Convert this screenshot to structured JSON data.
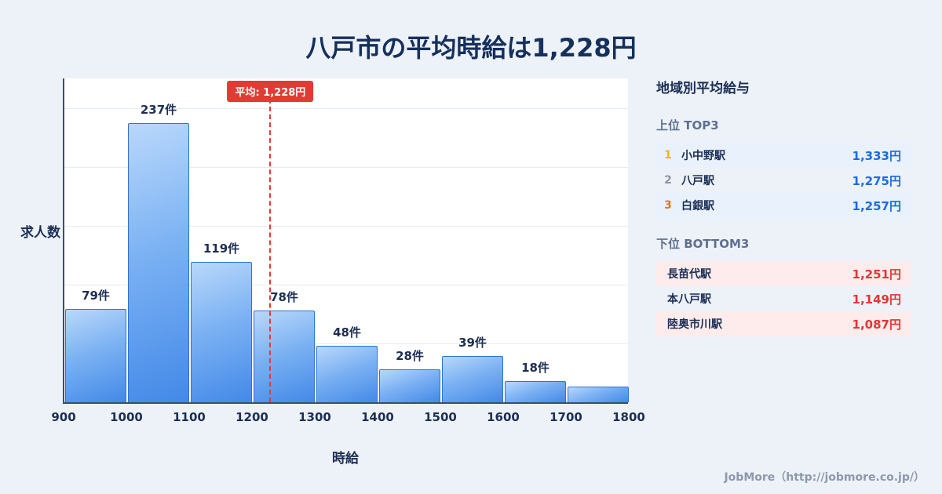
{
  "title": "八戸市の平均時給は1,228円",
  "chart_data": {
    "type": "bar",
    "title": "八戸市の平均時給は1,228円",
    "xlabel": "時給",
    "ylabel": "求人数",
    "x_ticks": [
      "900",
      "1000",
      "1100",
      "1200",
      "1300",
      "1400",
      "1500",
      "1600",
      "1700",
      "1800"
    ],
    "xlim": [
      900,
      1800
    ],
    "ylim": [
      0,
      277
    ],
    "grid": true,
    "bins": [
      {
        "range": [
          900,
          1000
        ],
        "count": 79,
        "label": "79件"
      },
      {
        "range": [
          1000,
          1100
        ],
        "count": 237,
        "label": "237件"
      },
      {
        "range": [
          1100,
          1200
        ],
        "count": 119,
        "label": "119件"
      },
      {
        "range": [
          1200,
          1300
        ],
        "count": 78,
        "label": "78件"
      },
      {
        "range": [
          1300,
          1400
        ],
        "count": 48,
        "label": "48件"
      },
      {
        "range": [
          1400,
          1500
        ],
        "count": 28,
        "label": "28件"
      },
      {
        "range": [
          1500,
          1600
        ],
        "count": 39,
        "label": "39件"
      },
      {
        "range": [
          1600,
          1700
        ],
        "count": 18,
        "label": "18件"
      },
      {
        "range": [
          1700,
          1800
        ],
        "count": 13,
        "label": ""
      }
    ],
    "average": 1228,
    "average_label": "平均: 1,228円"
  },
  "sidebar": {
    "heading": "地域別平均給与",
    "top": {
      "heading": "上位 TOP3",
      "rows": [
        {
          "rank": "1",
          "station": "小中野駅",
          "value": "1,333円"
        },
        {
          "rank": "2",
          "station": "八戸駅",
          "value": "1,275円"
        },
        {
          "rank": "3",
          "station": "白銀駅",
          "value": "1,257円"
        }
      ]
    },
    "bottom": {
      "heading": "下位 BOTTOM3",
      "rows": [
        {
          "station": "長苗代駅",
          "value": "1,251円"
        },
        {
          "station": "本八戸駅",
          "value": "1,149円"
        },
        {
          "station": "陸奥市川駅",
          "value": "1,087円"
        }
      ]
    }
  },
  "footer": "JobMore（http://jobmore.co.jp/）",
  "colors": {
    "background": "#edf2f9",
    "title": "#16305c",
    "bar_fill_top": "#b9d8fb",
    "bar_fill_bottom": "#4389e8",
    "bar_border": "#2f72d2",
    "average_red": "#e23b35",
    "top_value_blue": "#1a6ce2",
    "bottom_value_red": "#e23535",
    "top_row_bg": "#e9f1fd",
    "bottom_row_bg": "#fdeceb",
    "rank_colors": [
      "#edb41f",
      "#8b95a7",
      "#d97b22"
    ]
  }
}
